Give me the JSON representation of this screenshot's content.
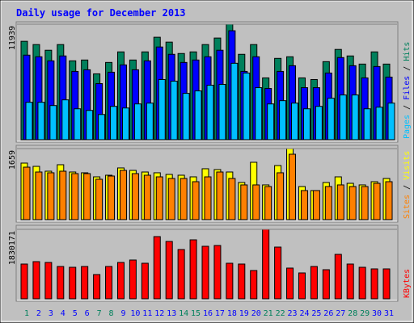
{
  "chart_data": [
    {
      "type": "bar",
      "title": "Daily usage for December 2013",
      "ylim": [
        0,
        11939
      ],
      "yticks": [
        11939
      ],
      "series": [
        {
          "name": "Hits",
          "color": "#00805c",
          "values": [
            10173,
            9837,
            9249,
            9837,
            8155,
            8240,
            6810,
            7987,
            9080,
            8240,
            9080,
            10594,
            10089,
            8912,
            9080,
            9837,
            10510,
            11939,
            8828,
            9837,
            6390,
            8408,
            8576,
            6390,
            6222,
            8071,
            9333,
            8660,
            7819,
            9080,
            7819
          ]
        },
        {
          "name": "Files",
          "color": "#0000ff",
          "values": [
            8744,
            8576,
            8155,
            8660,
            7062,
            7231,
            5801,
            6978,
            7735,
            7231,
            8155,
            9585,
            8828,
            7987,
            8240,
            8576,
            9249,
            11266,
            7062,
            8576,
            5297,
            7062,
            7651,
            5381,
            5381,
            6894,
            8492,
            7651,
            6390,
            7567,
            6474
          ]
        },
        {
          "name": "Pages",
          "color": "#00c0ff",
          "values": [
            3868,
            3868,
            3531,
            4120,
            3195,
            3027,
            2606,
            3447,
            3279,
            3699,
            3783,
            6222,
            6054,
            4792,
            5045,
            5633,
            5717,
            7903,
            6894,
            5381,
            3699,
            4036,
            3783,
            3195,
            3447,
            4288,
            4624,
            4624,
            3195,
            3363,
            3783
          ]
        }
      ]
    },
    {
      "type": "bar",
      "ylim": [
        0,
        1659
      ],
      "yticks": [
        1659
      ],
      "series": [
        {
          "name": "Visits",
          "color": "#ffff00",
          "values": [
            1320,
            1244,
            1131,
            1282,
            1112,
            1094,
            999,
            1037,
            1207,
            1150,
            1112,
            1094,
            1056,
            1037,
            999,
            1188,
            1169,
            1112,
            867,
            1339,
            811,
            1263,
            1659,
            773,
            679,
            867,
            999,
            848,
            811,
            886,
            961
          ]
        },
        {
          "name": "Sites",
          "color": "#ff8000",
          "values": [
            1225,
            1112,
            1094,
            1131,
            1075,
            1075,
            943,
            1018,
            1150,
            1075,
            1037,
            999,
            961,
            961,
            886,
            999,
            1112,
            961,
            811,
            811,
            773,
            1094,
            1527,
            679,
            679,
            773,
            811,
            773,
            773,
            848,
            886
          ]
        }
      ]
    },
    {
      "type": "bar",
      "categories": [
        "1",
        "2",
        "3",
        "4",
        "5",
        "6",
        "7",
        "8",
        "9",
        "10",
        "11",
        "12",
        "13",
        "14",
        "15",
        "16",
        "17",
        "18",
        "19",
        "20",
        "21",
        "22",
        "23",
        "24",
        "25",
        "26",
        "27",
        "28",
        "29",
        "30",
        "31"
      ],
      "ylim": [
        0,
        1830171
      ],
      "yticks": [
        1830171
      ],
      "series": [
        {
          "name": "KBytes",
          "color": "#ff0000",
          "values": [
            915083,
            978926,
            957645,
            851240,
            829959,
            851240,
            638430,
            851240,
            957645,
            1021488,
            936364,
            1638637,
            1510951,
            1298141,
            1553513,
            1383265,
            1404546,
            936364,
            915083,
            744835,
            1830171,
            1361984,
            808678,
            680992,
            851240,
            766116,
            1170455,
            915083,
            829959,
            787397,
            787397
          ]
        }
      ]
    }
  ]
}
